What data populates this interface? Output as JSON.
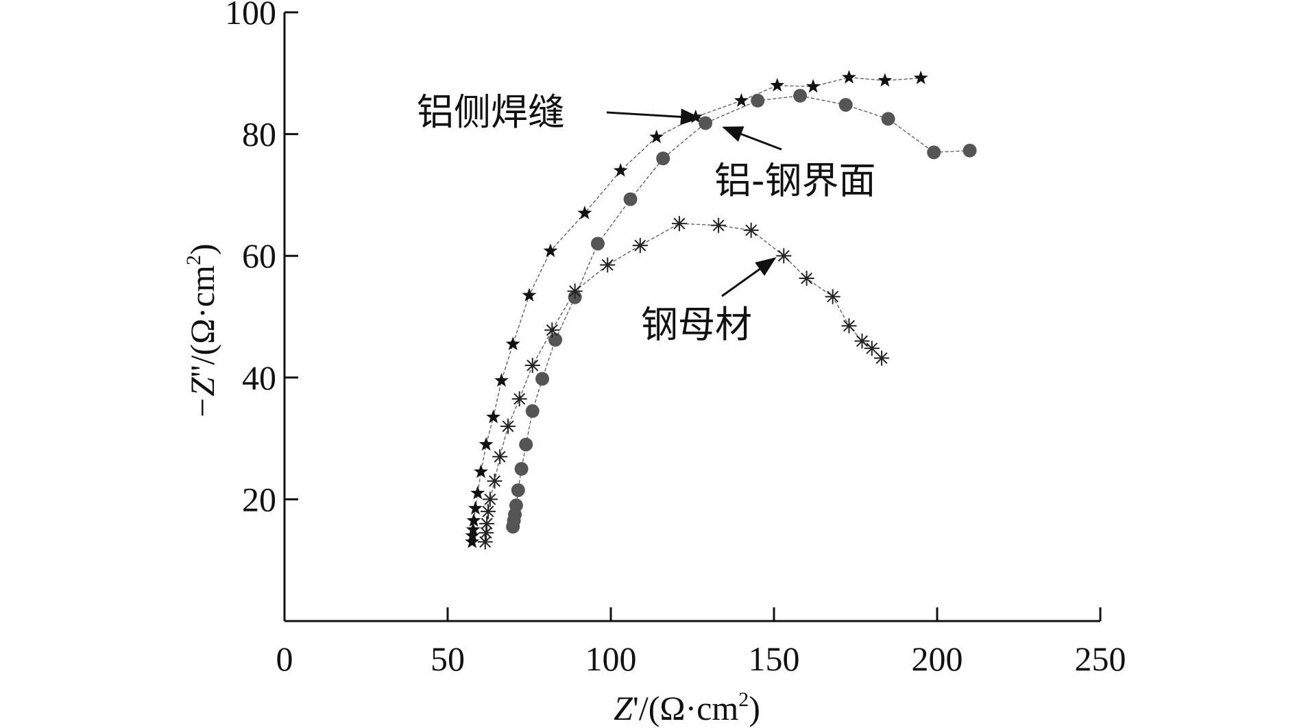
{
  "chart_data": {
    "type": "scatter",
    "xlim": [
      0,
      250
    ],
    "ylim": [
      0,
      100
    ],
    "xticks": [
      "0",
      "50",
      "100",
      "150",
      "200",
      "250"
    ],
    "yticks": [
      "20",
      "40",
      "60",
      "80",
      "100"
    ],
    "xlabel": {
      "var": "Z",
      "prime": "'",
      "unit": "/(Ω·cm",
      "sup": "2",
      "close": ")"
    },
    "ylabel": {
      "var": "−Z",
      "prime": "''",
      "unit": "/(Ω·cm",
      "sup": "2",
      "close": ")"
    },
    "grid": false,
    "series": [
      {
        "name": "铝侧焊缝",
        "marker": "star",
        "points": [
          [
            57.5,
            13
          ],
          [
            57.6,
            14
          ],
          [
            57.8,
            15
          ],
          [
            58,
            16.5
          ],
          [
            58.5,
            18.5
          ],
          [
            59.2,
            21
          ],
          [
            60.2,
            24.5
          ],
          [
            61.8,
            29
          ],
          [
            64,
            33.5
          ],
          [
            66.5,
            39.5
          ],
          [
            70,
            45.5
          ],
          [
            75,
            53.5
          ],
          [
            81.5,
            60.8
          ],
          [
            92,
            67
          ],
          [
            103,
            74
          ],
          [
            114,
            79.5
          ],
          [
            126,
            82.8
          ],
          [
            140,
            85.5
          ],
          [
            151,
            88
          ],
          [
            162,
            87.8
          ],
          [
            173,
            89.3
          ],
          [
            184,
            88.8
          ],
          [
            195,
            89.2
          ]
        ]
      },
      {
        "name": "铝-钢界面",
        "marker": "circle",
        "points": [
          [
            70,
            15.5
          ],
          [
            70.3,
            16.5
          ],
          [
            70.6,
            17.5
          ],
          [
            71,
            19
          ],
          [
            71.6,
            21.5
          ],
          [
            72.6,
            25
          ],
          [
            74,
            29
          ],
          [
            76,
            34.5
          ],
          [
            79,
            39.8
          ],
          [
            83,
            46.2
          ],
          [
            89,
            53.2
          ],
          [
            96,
            62
          ],
          [
            106,
            69.3
          ],
          [
            116,
            76
          ],
          [
            129,
            81.8
          ],
          [
            145,
            85.5
          ],
          [
            158,
            86.3
          ],
          [
            172,
            84.8
          ],
          [
            185,
            82.5
          ],
          [
            199,
            77
          ],
          [
            210,
            77.3
          ]
        ]
      },
      {
        "name": "钢母材",
        "marker": "asterisk",
        "points": [
          [
            61.5,
            13
          ],
          [
            61.8,
            14.5
          ],
          [
            62,
            16
          ],
          [
            62.4,
            18
          ],
          [
            63,
            20
          ],
          [
            64.4,
            23
          ],
          [
            66,
            27
          ],
          [
            68.5,
            32
          ],
          [
            72,
            36.5
          ],
          [
            76,
            42
          ],
          [
            82,
            47.8
          ],
          [
            89,
            54.2
          ],
          [
            99,
            58.5
          ],
          [
            109,
            61.7
          ],
          [
            121,
            65.3
          ],
          [
            133,
            65
          ],
          [
            143,
            64.2
          ],
          [
            153,
            60
          ],
          [
            160,
            56.3
          ],
          [
            168,
            53.3
          ],
          [
            173,
            48.5
          ],
          [
            177,
            46
          ],
          [
            180,
            44.8
          ],
          [
            183,
            43.2
          ]
        ]
      }
    ],
    "annotations": [
      {
        "text": "铝侧焊缝",
        "series": 0
      },
      {
        "text": "铝-钢界面",
        "series": 1
      },
      {
        "text": "钢母材",
        "series": 2
      }
    ]
  }
}
